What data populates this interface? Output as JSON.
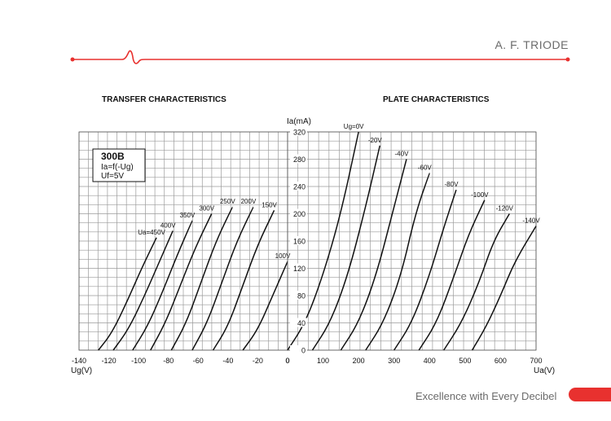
{
  "header": {
    "title": "A. F. TRIODE",
    "accent_color": "#e8312f"
  },
  "footer": {
    "slogan": "Excellence with Every Decibel",
    "accent_color": "#e8312f"
  },
  "chart_data": [
    {
      "type": "line",
      "title": "TRANSFER CHARACTERISTICS",
      "xlabel": "Ug(V)",
      "ylabel": "",
      "xlim": [
        -140,
        0
      ],
      "ylim": [
        0,
        320
      ],
      "x_ticks": [
        "-140",
        "-120",
        "-100",
        "-80",
        "-60",
        "-40",
        "-20",
        "0"
      ],
      "grid": true,
      "legend_box": {
        "name": "300B",
        "lines": [
          "Ia=f(-Ug)",
          "Uf=5V"
        ]
      },
      "series": [
        {
          "name": "Ua=450V",
          "points": [
            [
              -127,
              0
            ],
            [
              -118,
              25
            ],
            [
              -108,
              70
            ],
            [
              -98,
              120
            ],
            [
              -88,
              165
            ]
          ]
        },
        {
          "name": "400V",
          "points": [
            [
              -117,
              0
            ],
            [
              -107,
              30
            ],
            [
              -97,
              75
            ],
            [
              -87,
              125
            ],
            [
              -77,
              175
            ]
          ]
        },
        {
          "name": "350V",
          "points": [
            [
              -104,
              0
            ],
            [
              -94,
              35
            ],
            [
              -84,
              85
            ],
            [
              -74,
              140
            ],
            [
              -64,
              190
            ]
          ]
        },
        {
          "name": "300V",
          "points": [
            [
              -92,
              0
            ],
            [
              -82,
              40
            ],
            [
              -72,
              95
            ],
            [
              -62,
              150
            ],
            [
              -51,
              200
            ]
          ]
        },
        {
          "name": "250V",
          "points": [
            [
              -78,
              0
            ],
            [
              -68,
              40
            ],
            [
              -58,
              100
            ],
            [
              -48,
              160
            ],
            [
              -37,
              210
            ]
          ]
        },
        {
          "name": "200V",
          "points": [
            [
              -64,
              0
            ],
            [
              -54,
              40
            ],
            [
              -44,
              100
            ],
            [
              -34,
              160
            ],
            [
              -23,
              210
            ]
          ]
        },
        {
          "name": "150V",
          "points": [
            [
              -50,
              0
            ],
            [
              -40,
              35
            ],
            [
              -30,
              95
            ],
            [
              -20,
              155
            ],
            [
              -9,
              205
            ]
          ]
        },
        {
          "name": "100V",
          "points": [
            [
              -30,
              0
            ],
            [
              -20,
              30
            ],
            [
              -10,
              80
            ],
            [
              0,
              130
            ]
          ]
        }
      ]
    },
    {
      "type": "line",
      "title": "PLATE CHARACTERISTICS",
      "xlabel": "Ua(V)",
      "ylabel": "Ia(mA)",
      "xlim": [
        0,
        700
      ],
      "ylim": [
        0,
        320
      ],
      "x_ticks": [
        "0",
        "100",
        "200",
        "300",
        "400",
        "500",
        "600",
        "700"
      ],
      "y_ticks": [
        "0",
        "40",
        "80",
        "120",
        "160",
        "200",
        "240",
        "280",
        "320"
      ],
      "grid": true,
      "series": [
        {
          "name": "Ug=0V",
          "points": [
            [
              0,
              0
            ],
            [
              50,
              40
            ],
            [
              100,
              110
            ],
            [
              150,
              200
            ],
            [
              200,
              320
            ]
          ]
        },
        {
          "name": "-20V",
          "points": [
            [
              70,
              0
            ],
            [
              120,
              40
            ],
            [
              170,
              110
            ],
            [
              220,
              210
            ],
            [
              260,
              300
            ]
          ]
        },
        {
          "name": "-40V",
          "points": [
            [
              150,
              0
            ],
            [
              200,
              40
            ],
            [
              250,
              110
            ],
            [
              300,
              210
            ],
            [
              335,
              280
            ]
          ]
        },
        {
          "name": "-60V",
          "points": [
            [
              220,
              0
            ],
            [
              270,
              40
            ],
            [
              320,
              110
            ],
            [
              360,
              200
            ],
            [
              400,
              260
            ]
          ]
        },
        {
          "name": "-80V",
          "points": [
            [
              300,
              0
            ],
            [
              350,
              40
            ],
            [
              400,
              110
            ],
            [
              440,
              180
            ],
            [
              475,
              235
            ]
          ]
        },
        {
          "name": "-100V",
          "points": [
            [
              370,
              0
            ],
            [
              420,
              40
            ],
            [
              470,
              110
            ],
            [
              510,
              170
            ],
            [
              555,
              220
            ]
          ]
        },
        {
          "name": "-120V",
          "points": [
            [
              440,
              0
            ],
            [
              490,
              40
            ],
            [
              540,
              100
            ],
            [
              580,
              160
            ],
            [
              625,
              200
            ]
          ]
        },
        {
          "name": "-140V",
          "points": [
            [
              520,
              0
            ],
            [
              560,
              35
            ],
            [
              600,
              80
            ],
            [
              640,
              130
            ],
            [
              700,
              182
            ]
          ]
        }
      ]
    }
  ]
}
